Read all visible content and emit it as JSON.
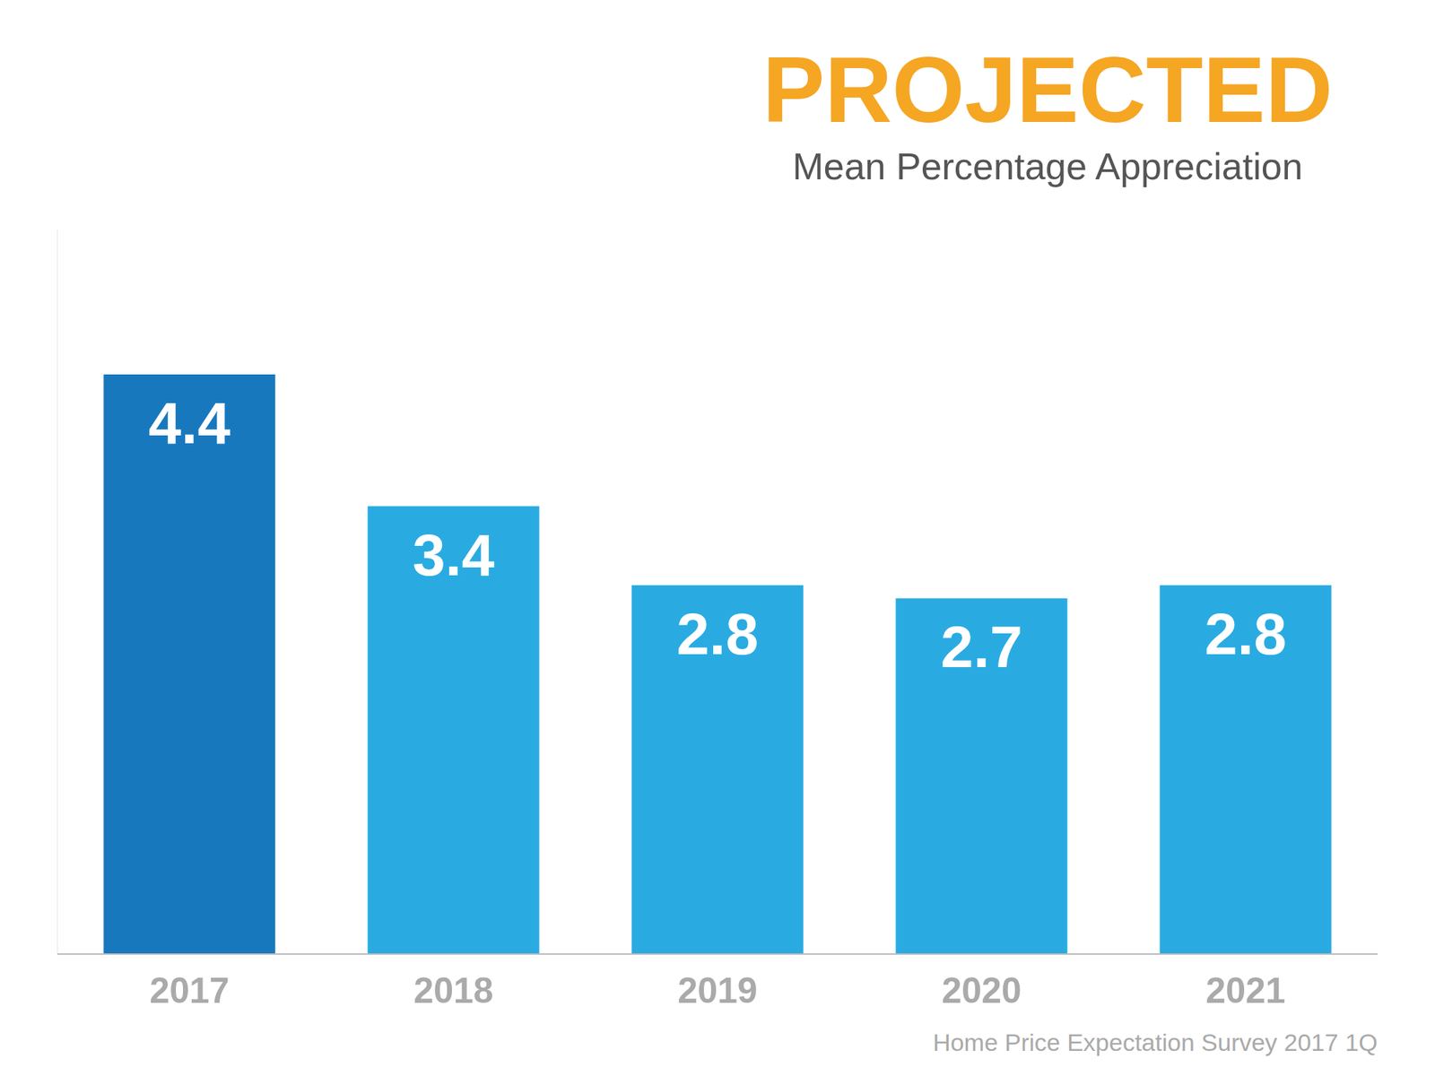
{
  "chart_data": {
    "type": "bar",
    "title": "PROJECTED",
    "subtitle": "Mean Percentage Appreciation",
    "categories": [
      "2017",
      "2018",
      "2019",
      "2020",
      "2021"
    ],
    "values": [
      4.4,
      3.4,
      2.8,
      2.7,
      2.8
    ],
    "colors": [
      "#1878be",
      "#29abe2",
      "#29abe2",
      "#29abe2",
      "#29abe2"
    ],
    "ylim": [
      0,
      5.5
    ],
    "grid": false,
    "data_labels": true,
    "tick_labels": "x",
    "annotations": [
      "Home Price Expectation Survey 2017 1Q"
    ]
  }
}
